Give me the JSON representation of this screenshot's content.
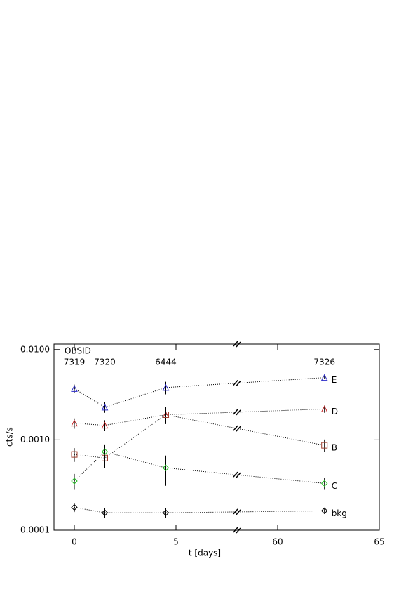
{
  "chart_data": {
    "type": "line",
    "xlabel": "t [days]",
    "ylabel": "cts/s",
    "log_y": true,
    "ylim": [
      0.0001,
      0.0115
    ],
    "yticks": [
      {
        "value": 0.01,
        "label": "0.0100"
      },
      {
        "value": 0.001,
        "label": "0.0010"
      },
      {
        "value": 0.0001,
        "label": "0.0001"
      }
    ],
    "x_segments": [
      {
        "xlim": [
          -1,
          8
        ],
        "xticks": [
          0,
          5
        ]
      },
      {
        "xlim": [
          58,
          65
        ],
        "xticks": [
          60,
          65
        ]
      }
    ],
    "x": [
      0,
      1.5,
      4.5,
      62.3
    ],
    "obsid_title": "OBSID",
    "obsids": [
      "7319",
      "7320",
      "6444",
      "7326"
    ],
    "series": [
      {
        "name": "E",
        "color": "#2a2ac8",
        "marker": "triangle",
        "values": [
          0.0037,
          0.0023,
          0.0038,
          0.0049
        ],
        "errors": [
          0.0004,
          0.0003,
          0.0006,
          0.0002
        ]
      },
      {
        "name": "D",
        "color": "#c82a2a",
        "marker": "triangle",
        "values": [
          0.00153,
          0.00145,
          0.0019,
          0.0022
        ],
        "errors": [
          0.0002,
          0.0002,
          0.0004,
          0.0002
        ]
      },
      {
        "name": "B",
        "color": "#a04030",
        "marker": "square",
        "values": [
          0.00069,
          0.00063,
          0.0019,
          0.00087
        ],
        "errors": [
          0.00012,
          0.00014,
          0.0004,
          0.00014
        ]
      },
      {
        "name": "C",
        "color": "#22c022",
        "marker": "diamond",
        "values": [
          0.00035,
          0.00074,
          0.00049,
          0.00033
        ],
        "errors": [
          7e-05,
          0.00015,
          0.00018,
          5e-05
        ]
      },
      {
        "name": "bkg",
        "color": "#000000",
        "marker": "diamond",
        "values": [
          0.000179,
          0.000156,
          0.000156,
          0.000164
        ],
        "errors": [
          2e-05,
          2e-05,
          2e-05,
          1e-05
        ]
      }
    ]
  }
}
